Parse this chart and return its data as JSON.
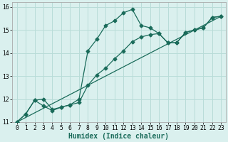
{
  "title": "",
  "xlabel": "Humidex (Indice chaleur)",
  "ylabel": "",
  "bg_color": "#daf0ee",
  "grid_color": "#b8dcd8",
  "line_color": "#1a6b5a",
  "xlim": [
    -0.5,
    23.5
  ],
  "ylim": [
    11,
    16.2
  ],
  "xticks": [
    0,
    1,
    2,
    3,
    4,
    5,
    6,
    7,
    8,
    9,
    10,
    11,
    12,
    13,
    14,
    15,
    16,
    17,
    18,
    19,
    20,
    21,
    22,
    23
  ],
  "yticks": [
    11,
    12,
    13,
    14,
    15,
    16
  ],
  "line1_x": [
    0,
    1,
    2,
    3,
    4,
    5,
    6,
    7,
    8,
    9,
    10,
    11,
    12,
    13,
    14,
    15,
    16,
    17,
    18,
    19,
    20,
    21,
    22,
    23
  ],
  "line1_y": [
    11.0,
    11.35,
    11.95,
    11.7,
    11.5,
    11.65,
    11.75,
    12.0,
    14.1,
    14.6,
    15.2,
    15.4,
    15.75,
    15.9,
    15.2,
    15.1,
    14.85,
    14.45,
    14.45,
    14.9,
    15.0,
    15.1,
    15.55,
    15.6
  ],
  "line2_x": [
    0,
    1,
    2,
    3,
    4,
    5,
    6,
    7,
    8,
    9,
    10,
    11,
    12,
    13,
    14,
    15,
    16,
    17,
    18,
    19,
    20,
    21,
    22,
    23
  ],
  "line2_y": [
    11.0,
    11.35,
    11.95,
    12.0,
    11.55,
    11.65,
    11.75,
    11.85,
    12.6,
    13.05,
    13.35,
    13.75,
    14.1,
    14.5,
    14.7,
    14.8,
    14.85,
    14.45,
    14.45,
    14.9,
    15.0,
    15.1,
    15.55,
    15.6
  ],
  "line3_x": [
    0,
    23
  ],
  "line3_y": [
    11.0,
    15.6
  ],
  "marker": "D",
  "markersize": 2.5,
  "linewidth": 0.9,
  "xlabel_fontsize": 7,
  "tick_fontsize": 5.8,
  "label_font": "monospace"
}
